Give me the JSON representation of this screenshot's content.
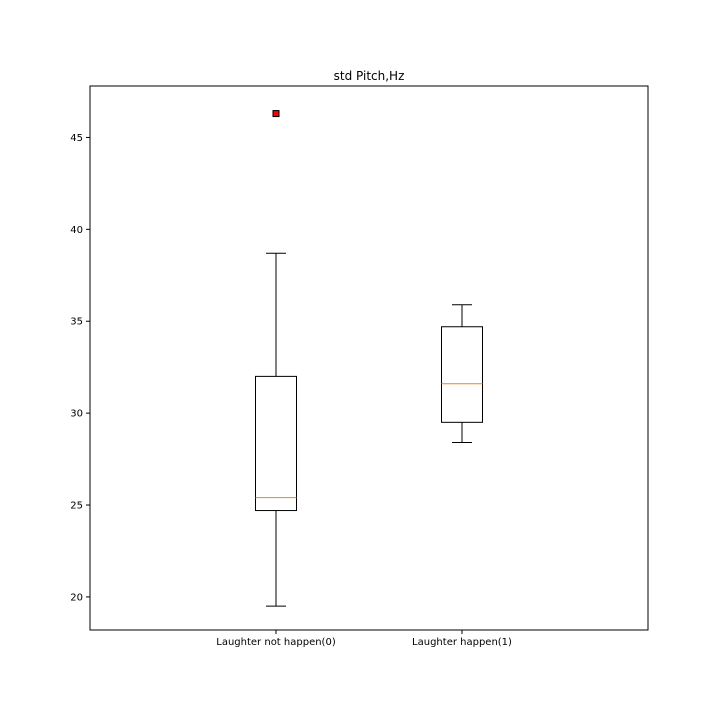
{
  "chart_data": {
    "type": "box",
    "title": "std Pitch,Hz",
    "xlabel": "",
    "ylabel": "",
    "ylim": [
      18.2,
      47.8
    ],
    "yticks": [
      20,
      25,
      30,
      35,
      40,
      45
    ],
    "grid": false,
    "categories": [
      "Laughter not happen(0)",
      "Laughter happen(1)"
    ],
    "boxes": [
      {
        "category": "Laughter not happen(0)",
        "whisker_low": 19.5,
        "q1": 24.7,
        "median": 25.4,
        "q3": 32.0,
        "whisker_high": 38.7,
        "outliers": [
          46.3
        ]
      },
      {
        "category": "Laughter happen(1)",
        "whisker_low": 28.4,
        "q1": 29.5,
        "median": 31.6,
        "q3": 34.7,
        "whisker_high": 35.9,
        "outliers": []
      }
    ],
    "colors": {
      "median": "#ff7f0e",
      "outlier_fill": "#ff0000",
      "box": "#000000"
    }
  }
}
